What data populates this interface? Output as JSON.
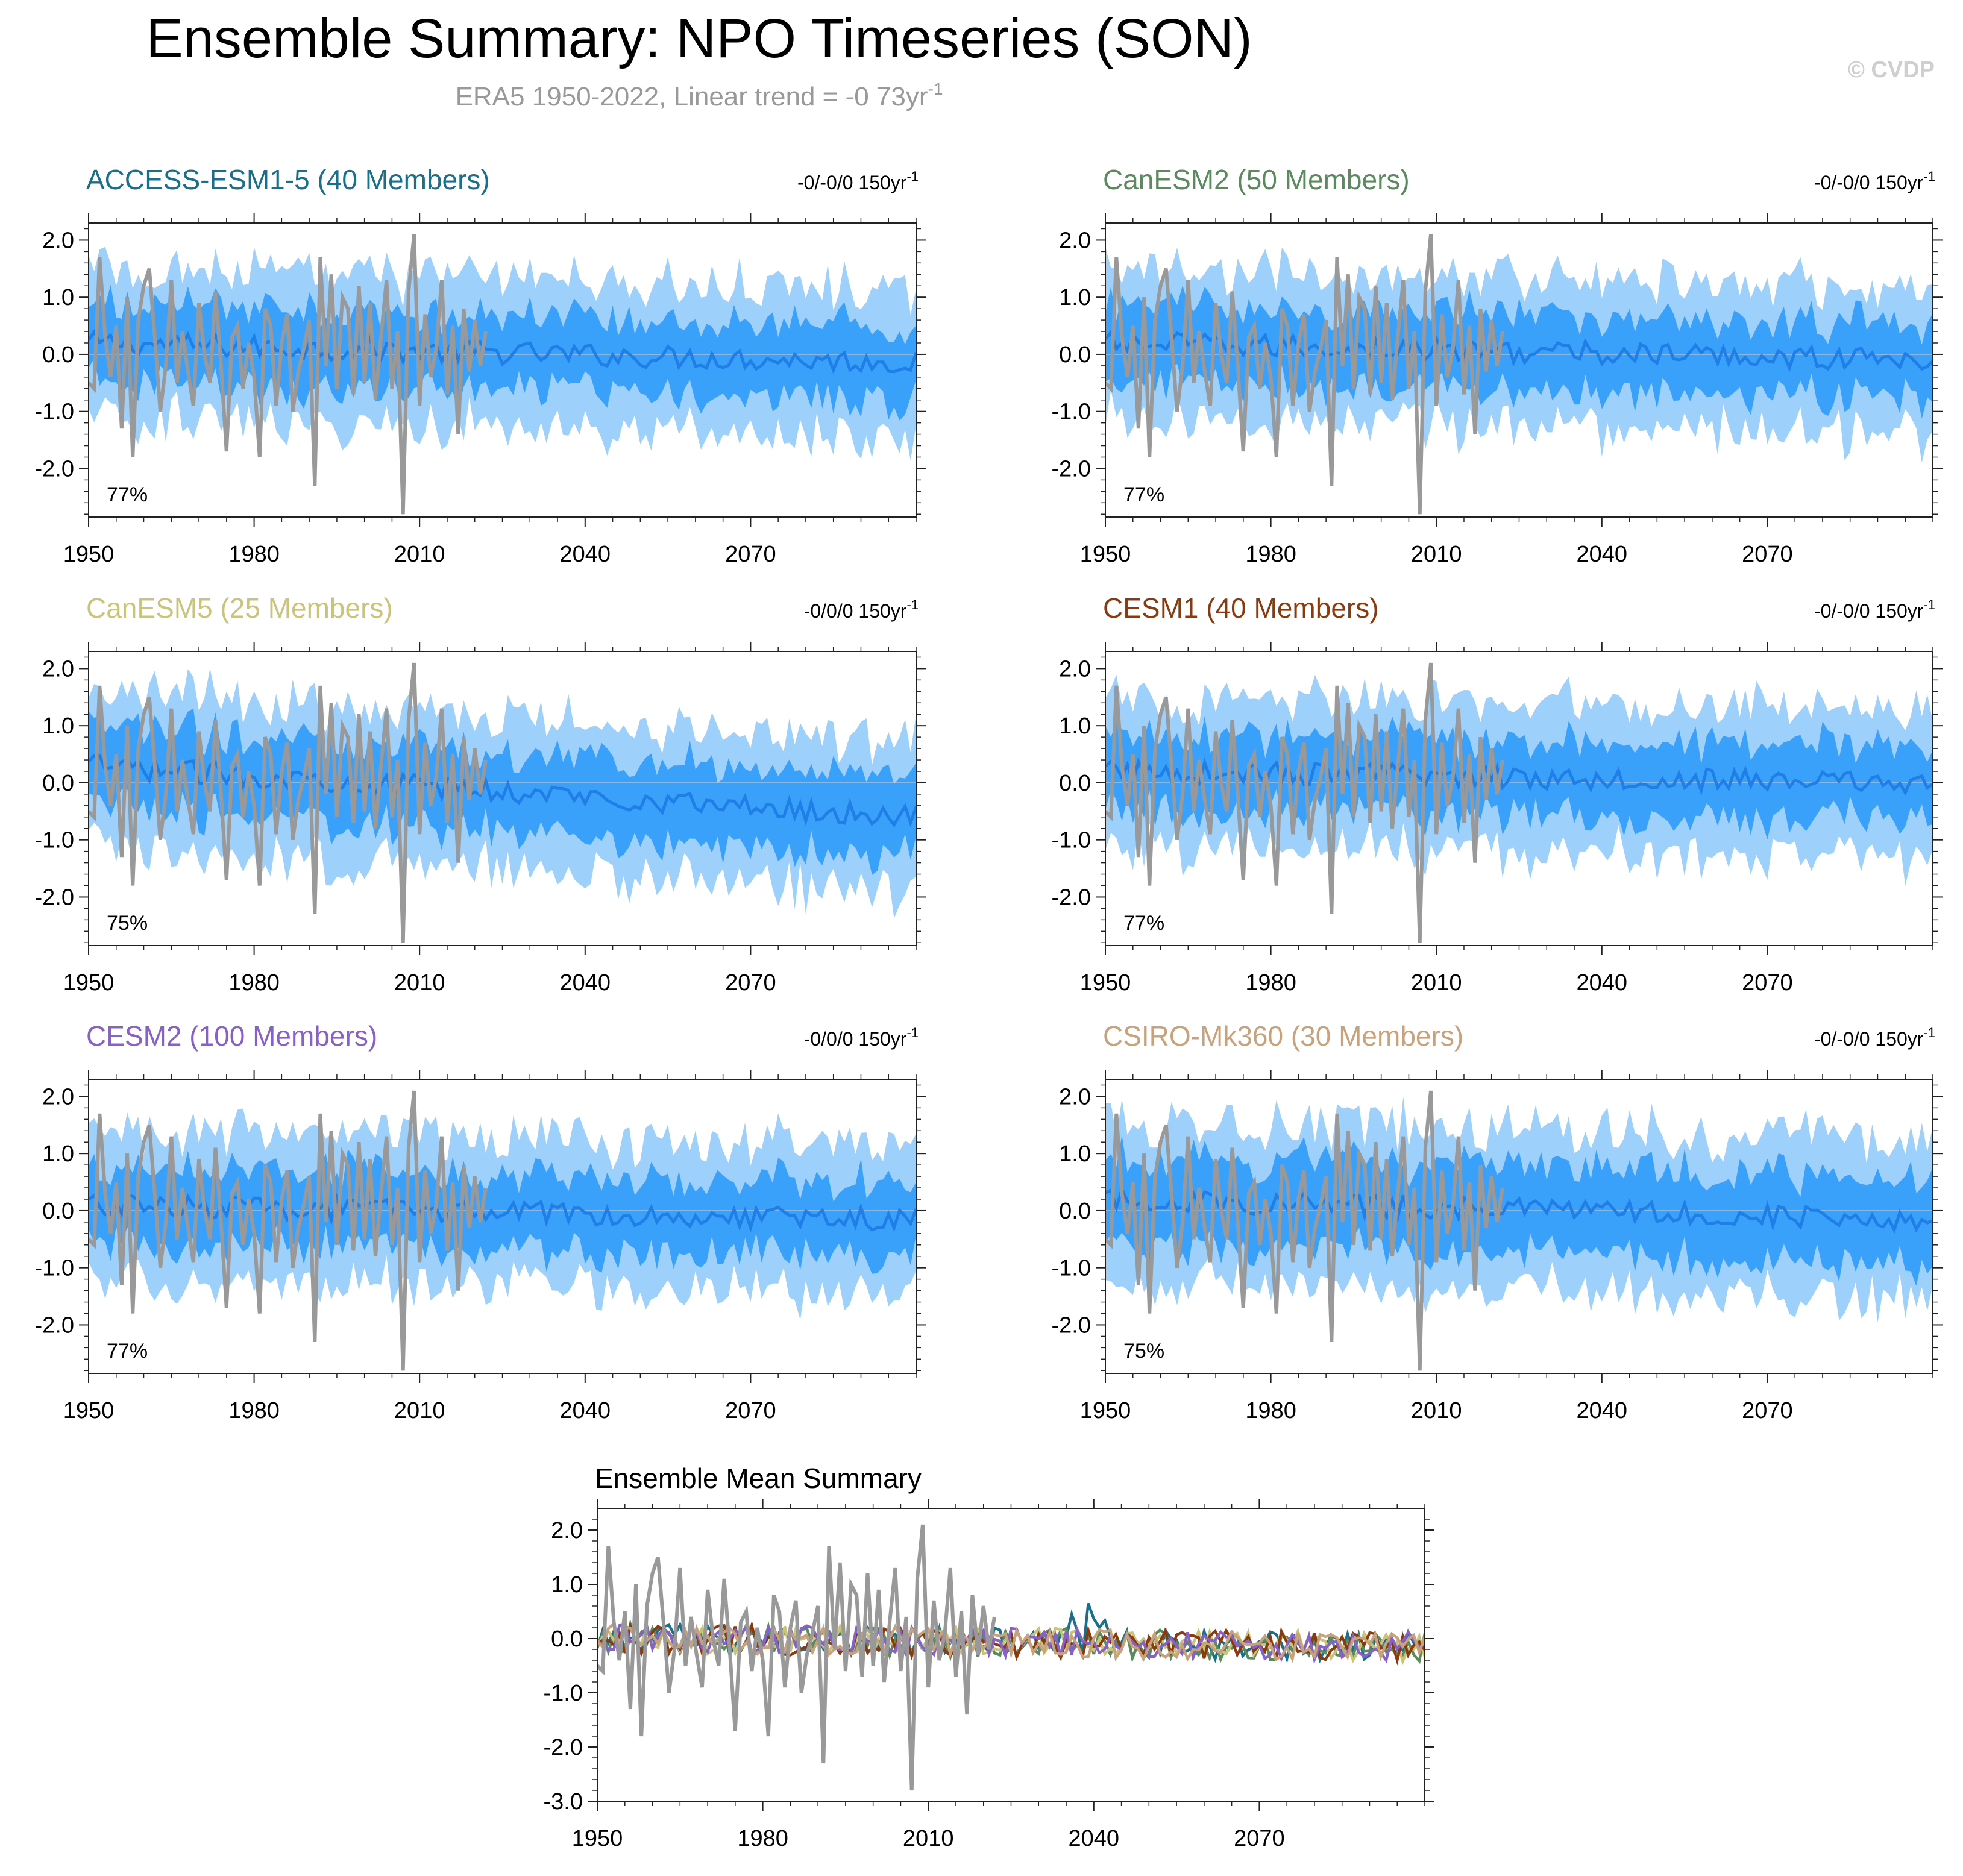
{
  "figure": {
    "title": "Ensemble Summary: NPO Timeseries (SON)",
    "subtitle_prefix": "ERA5 1950-2022, Linear trend = -0 73yr",
    "subtitle_sup": "-1",
    "watermark": "© CVDP"
  },
  "colors": {
    "outer_band": "#9dd0fa",
    "inner_band": "#3aa1fb",
    "ensemble_mean": "#1f7fe6",
    "observations": "#999999",
    "zero_line": "#bbbbbb"
  },
  "chart_data": [
    {
      "type": "line",
      "title": "ACCESS-ESM1-5 (40 Members)",
      "title_color": "#1a6f8a",
      "trend_text": "-0/-0/0 150yr",
      "trend_sup": "-1",
      "percent_label": "77%",
      "x_range": [
        1950,
        2100
      ],
      "ylim": [
        -2.85,
        2.3
      ],
      "yticks": [
        "2.0",
        "1.0",
        "0.0",
        "-1.0",
        "-2.0"
      ],
      "ytick_values": [
        2,
        1,
        0,
        -1,
        -2
      ],
      "xticks": [
        "1950",
        "1980",
        "2010",
        "2040",
        "2070"
      ],
      "xtick_values": [
        1950,
        1980,
        2010,
        2040,
        2070
      ],
      "series": [
        {
          "name": "outer_band",
          "spread": 1.3
        },
        {
          "name": "inner_band",
          "spread": 0.65
        },
        {
          "name": "ensemble_mean",
          "mean_start": 0.2,
          "mean_end": -0.15
        },
        {
          "name": "observations",
          "x_start": 1950,
          "x_end": 2022
        }
      ]
    },
    {
      "type": "line",
      "title": "CanESM2 (50 Members)",
      "title_color": "#5a8a5e",
      "trend_text": "-0/-0/0 150yr",
      "trend_sup": "-1",
      "percent_label": "77%",
      "x_range": [
        1950,
        2100
      ],
      "ylim": [
        -2.85,
        2.3
      ],
      "yticks": [
        "2.0",
        "1.0",
        "0.0",
        "-1.0",
        "-2.0"
      ],
      "ytick_values": [
        2,
        1,
        0,
        -1,
        -2
      ],
      "xticks": [
        "1950",
        "1980",
        "2010",
        "2040",
        "2070"
      ],
      "xtick_values": [
        1950,
        1980,
        2010,
        2040,
        2070
      ],
      "series": [
        {
          "name": "outer_band",
          "spread": 1.3
        },
        {
          "name": "inner_band",
          "spread": 0.65
        },
        {
          "name": "ensemble_mean",
          "mean_start": 0.2,
          "mean_end": -0.1
        },
        {
          "name": "observations",
          "x_start": 1950,
          "x_end": 2022
        }
      ]
    },
    {
      "type": "line",
      "title": "CanESM5 (25 Members)",
      "title_color": "#c9c47a",
      "trend_text": "-0/0/0 150yr",
      "trend_sup": "-1",
      "percent_label": "75%",
      "x_range": [
        1950,
        2100
      ],
      "ylim": [
        -2.85,
        2.3
      ],
      "yticks": [
        "2.0",
        "1.0",
        "0.0",
        "-1.0",
        "-2.0"
      ],
      "ytick_values": [
        2,
        1,
        0,
        -1,
        -2
      ],
      "xticks": [
        "1950",
        "1980",
        "2010",
        "2040",
        "2070"
      ],
      "xtick_values": [
        1950,
        1980,
        2010,
        2040,
        2070
      ],
      "series": [
        {
          "name": "outer_band",
          "spread": 1.35
        },
        {
          "name": "inner_band",
          "spread": 0.7
        },
        {
          "name": "ensemble_mean",
          "mean_start": 0.3,
          "mean_end": -0.6
        },
        {
          "name": "observations",
          "x_start": 1950,
          "x_end": 2022
        }
      ]
    },
    {
      "type": "line",
      "title": "CESM1 (40 Members)",
      "title_color": "#8b3a0e",
      "trend_text": "-0/-0/0 150yr",
      "trend_sup": "-1",
      "percent_label": "77%",
      "x_range": [
        1950,
        2100
      ],
      "ylim": [
        -2.85,
        2.3
      ],
      "yticks": [
        "2.0",
        "1.0",
        "0.0",
        "-1.0",
        "-2.0"
      ],
      "ytick_values": [
        2,
        1,
        0,
        -1,
        -2
      ],
      "xticks": [
        "1950",
        "1980",
        "2010",
        "2040",
        "2070"
      ],
      "xtick_values": [
        1950,
        1980,
        2010,
        2040,
        2070
      ],
      "series": [
        {
          "name": "outer_band",
          "spread": 1.3
        },
        {
          "name": "inner_band",
          "spread": 0.65
        },
        {
          "name": "ensemble_mean",
          "mean_start": 0.2,
          "mean_end": 0.0
        },
        {
          "name": "observations",
          "x_start": 1950,
          "x_end": 2022
        }
      ]
    },
    {
      "type": "line",
      "title": "CESM2 (100 Members)",
      "title_color": "#8661c9",
      "trend_text": "-0/0/0 150yr",
      "trend_sup": "-1",
      "percent_label": "77%",
      "x_range": [
        1950,
        2100
      ],
      "ylim": [
        -2.85,
        2.3
      ],
      "yticks": [
        "2.0",
        "1.0",
        "0.0",
        "-1.0",
        "-2.0"
      ],
      "ytick_values": [
        2,
        1,
        0,
        -1,
        -2
      ],
      "xticks": [
        "1950",
        "1980",
        "2010",
        "2040",
        "2070"
      ],
      "xtick_values": [
        1950,
        1980,
        2010,
        2040,
        2070
      ],
      "series": [
        {
          "name": "outer_band",
          "spread": 1.3
        },
        {
          "name": "inner_band",
          "spread": 0.65
        },
        {
          "name": "ensemble_mean",
          "mean_start": 0.1,
          "mean_end": -0.15
        },
        {
          "name": "observations",
          "x_start": 1950,
          "x_end": 2022
        }
      ]
    },
    {
      "type": "line",
      "title": "CSIRO-Mk360 (30 Members)",
      "title_color": "#c8a27a",
      "trend_text": "-0/-0/0 150yr",
      "trend_sup": "-1",
      "percent_label": "75%",
      "x_range": [
        1950,
        2100
      ],
      "ylim": [
        -2.85,
        2.3
      ],
      "yticks": [
        "2.0",
        "1.0",
        "0.0",
        "-1.0",
        "-2.0"
      ],
      "ytick_values": [
        2,
        1,
        0,
        -1,
        -2
      ],
      "xticks": [
        "1950",
        "1980",
        "2010",
        "2040",
        "2070"
      ],
      "xtick_values": [
        1950,
        1980,
        2010,
        2040,
        2070
      ],
      "series": [
        {
          "name": "outer_band",
          "spread": 1.4
        },
        {
          "name": "inner_band",
          "spread": 0.75
        },
        {
          "name": "ensemble_mean",
          "mean_start": 0.2,
          "mean_end": -0.15
        },
        {
          "name": "observations",
          "x_start": 1950,
          "x_end": 2022
        }
      ]
    },
    {
      "type": "line",
      "title": "Ensemble Mean Summary",
      "x_range": [
        1950,
        2100
      ],
      "ylim": [
        -3.0,
        2.4
      ],
      "yticks": [
        "2.0",
        "1.0",
        "0.0",
        "-1.0",
        "-2.0",
        "-3.0"
      ],
      "ytick_values": [
        2,
        1,
        0,
        -1,
        -2,
        -3
      ],
      "xticks": [
        "1950",
        "1980",
        "2010",
        "2040",
        "2070"
      ],
      "xtick_values": [
        1950,
        1980,
        2010,
        2040,
        2070
      ],
      "series": [
        {
          "name": "ACCESS-ESM1-5",
          "color": "#1a6f8a"
        },
        {
          "name": "CanESM2",
          "color": "#5a8a5e"
        },
        {
          "name": "CanESM5",
          "color": "#c9c47a"
        },
        {
          "name": "CESM1",
          "color": "#8b3a0e"
        },
        {
          "name": "CESM2",
          "color": "#8661c9"
        },
        {
          "name": "CSIRO-Mk360",
          "color": "#c8a27a"
        },
        {
          "name": "ERA5",
          "color": "#999999",
          "x_start": 1950,
          "x_end": 2022
        }
      ]
    }
  ]
}
